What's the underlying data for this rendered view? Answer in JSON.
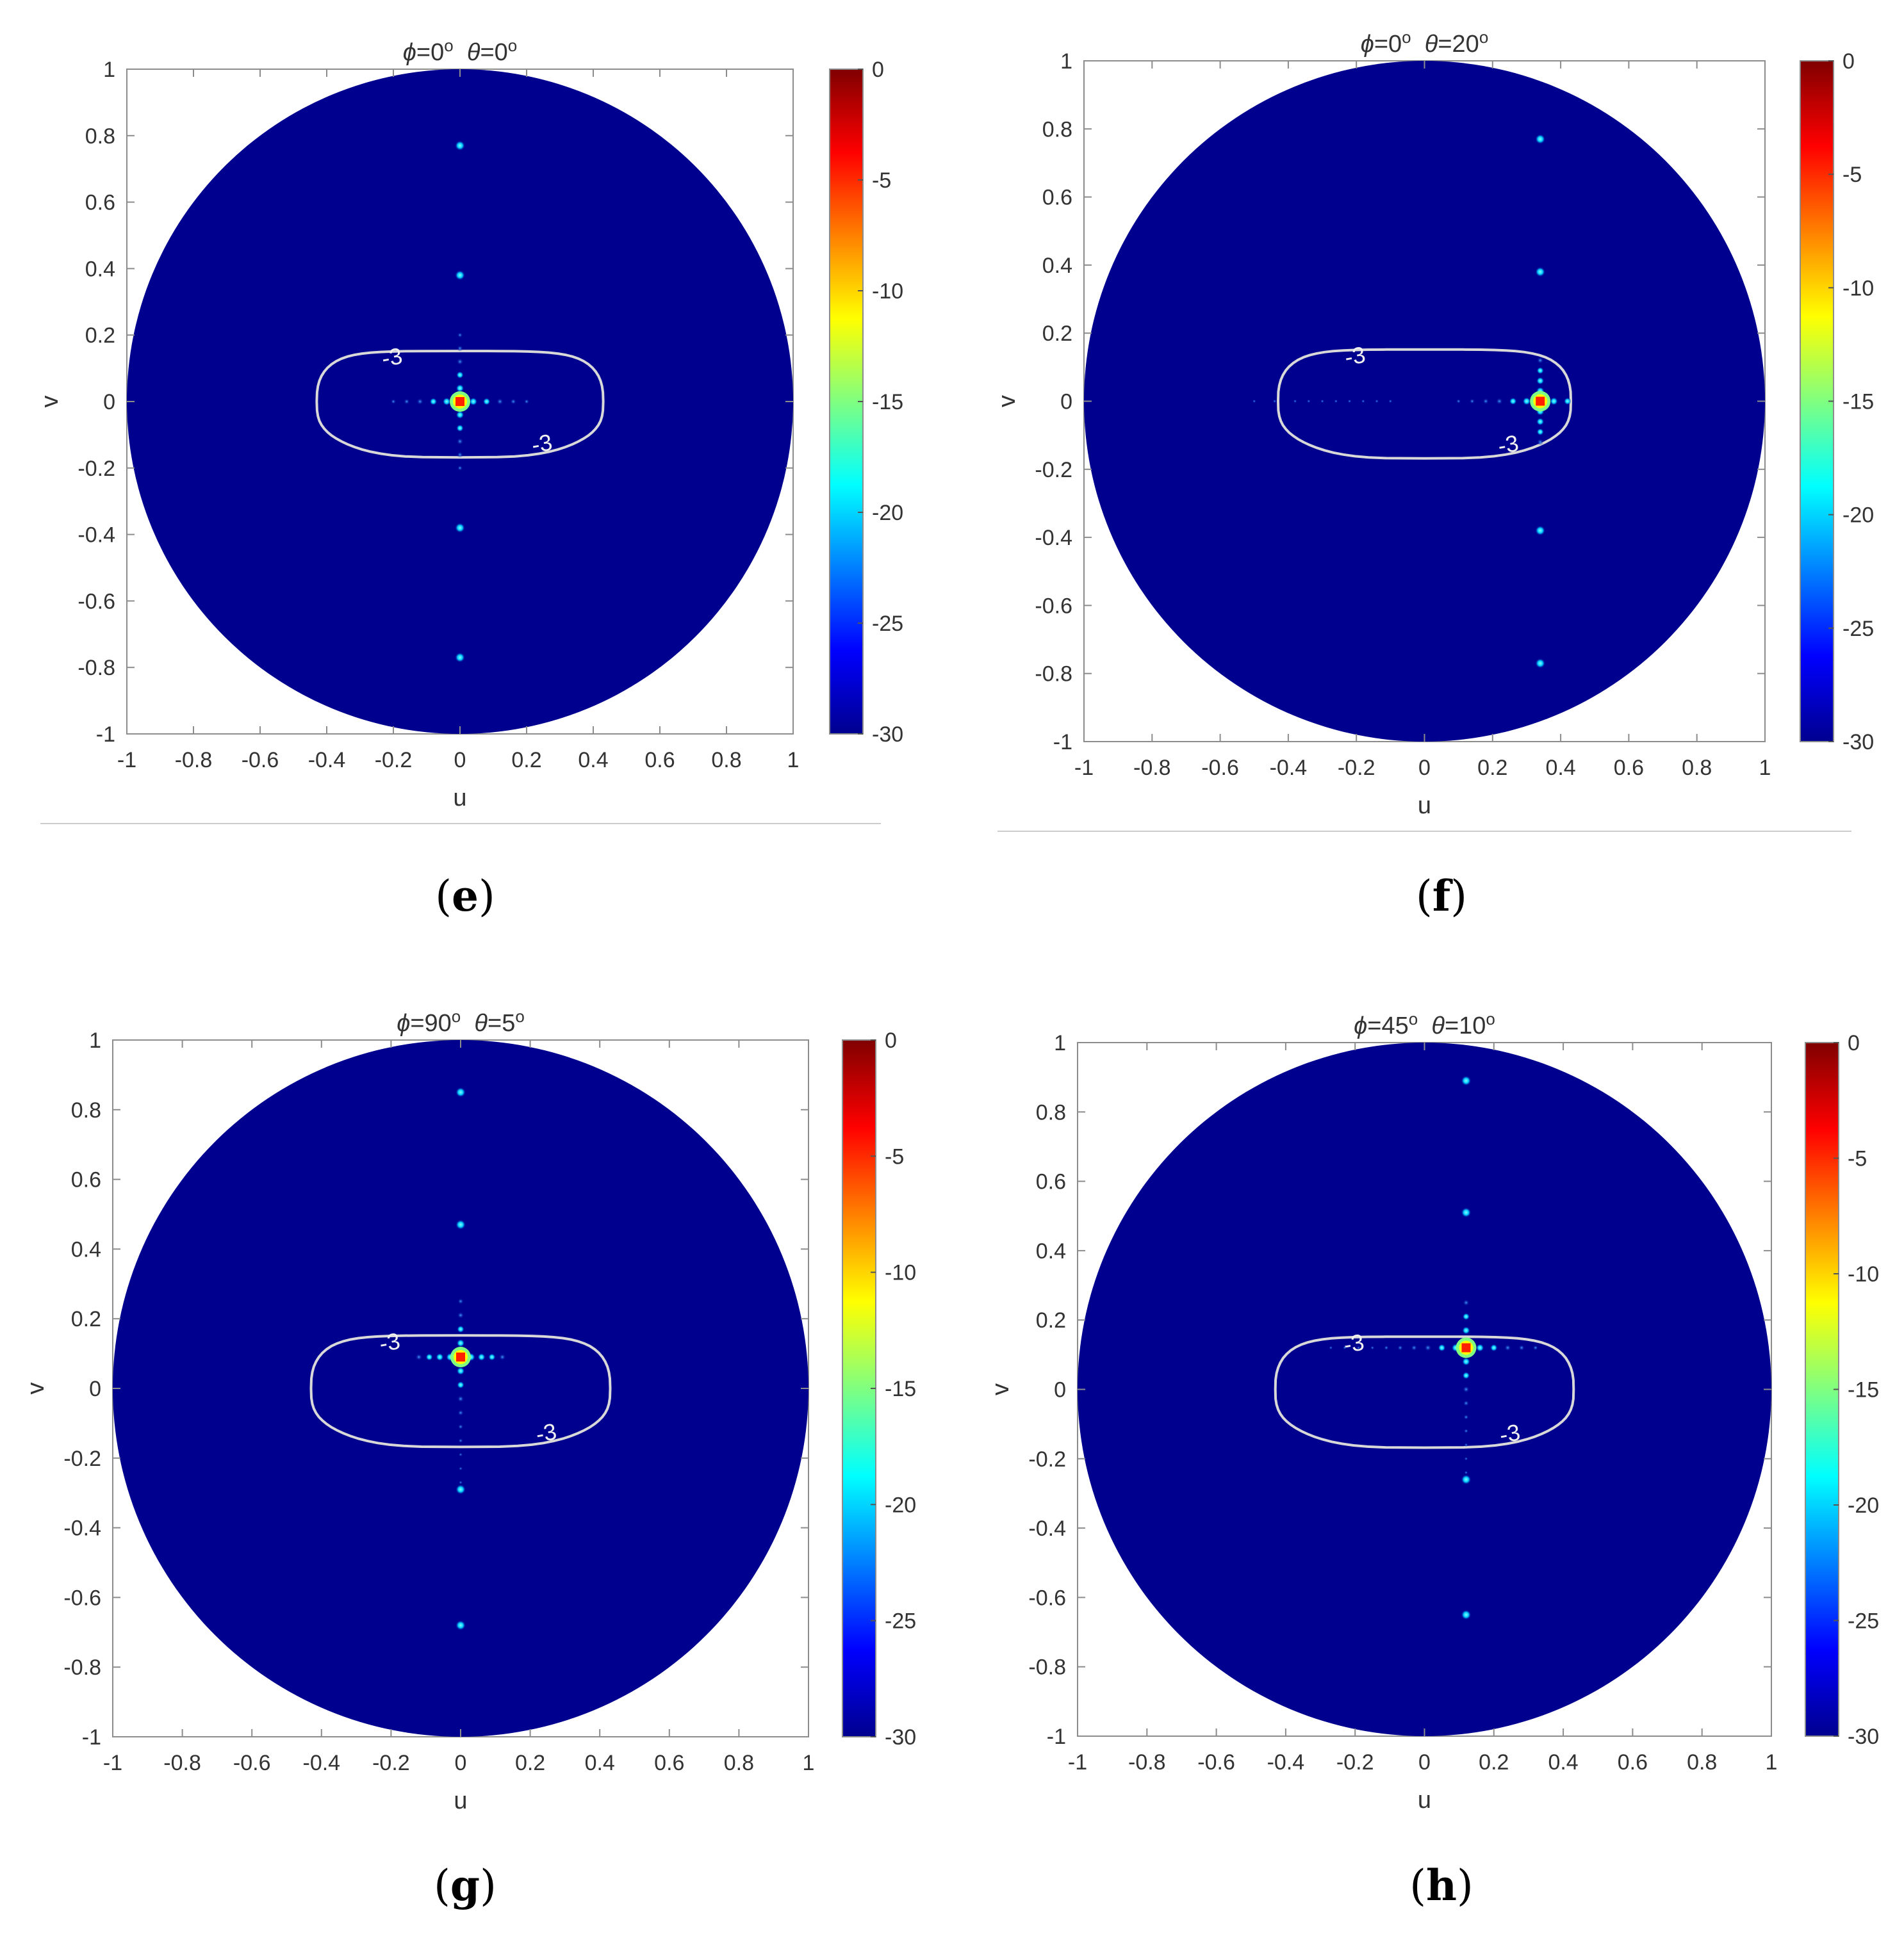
{
  "chart_data": [
    {
      "type": "heatmap",
      "panel_label": "e",
      "title": {
        "phi_symbol": "ϕ",
        "phi_value": "=0",
        "theta_symbol": "θ",
        "theta_value": "=0",
        "degree": "o"
      },
      "xlabel": "u",
      "ylabel": "v",
      "xlim": [
        -1,
        1
      ],
      "ylim": [
        -1,
        1
      ],
      "x_ticks": [
        "-1",
        "-0.8",
        "-0.6",
        "-0.4",
        "-0.2",
        "0",
        "0.2",
        "0.4",
        "0.6",
        "0.8",
        "1"
      ],
      "y_ticks": [
        "-1",
        "-0.8",
        "-0.6",
        "-0.4",
        "-0.2",
        "0",
        "0.2",
        "0.4",
        "0.6",
        "0.8",
        "1"
      ],
      "colorbar": {
        "range": [
          -30,
          0
        ],
        "ticks": [
          "0",
          "-5",
          "-10",
          "-15",
          "-20",
          "-25",
          "-30"
        ]
      },
      "contour": {
        "level": -3,
        "labels": [
          "-3",
          "-3"
        ],
        "u_extent": [
          -0.43,
          0.43
        ],
        "v_extent": [
          -0.16,
          0.16
        ]
      },
      "main_beam": {
        "u": 0.0,
        "v": 0.0
      },
      "sidelobes_u": [
        -0.2,
        -0.16,
        -0.12,
        -0.08,
        -0.04,
        0.04,
        0.08,
        0.12,
        0.16,
        0.2
      ],
      "sidelobes_v": [
        -0.2,
        -0.16,
        -0.12,
        -0.08,
        -0.04,
        0.04,
        0.08,
        0.12,
        0.16,
        0.2
      ],
      "grating_lobes": [
        {
          "u": 0,
          "v": 0.77
        },
        {
          "u": 0,
          "v": 0.38
        },
        {
          "u": 0,
          "v": -0.38
        },
        {
          "u": 0,
          "v": -0.77
        }
      ]
    },
    {
      "type": "heatmap",
      "panel_label": "f",
      "title": {
        "phi_symbol": "ϕ",
        "phi_value": "=0",
        "theta_symbol": "θ",
        "theta_value": "=20",
        "degree": "o"
      },
      "xlabel": "u",
      "ylabel": "v",
      "xlim": [
        -1,
        1
      ],
      "ylim": [
        -1,
        1
      ],
      "x_ticks": [
        "-1",
        "-0.8",
        "-0.6",
        "-0.4",
        "-0.2",
        "0",
        "0.2",
        "0.4",
        "0.6",
        "0.8",
        "1"
      ],
      "y_ticks": [
        "-1",
        "-0.8",
        "-0.6",
        "-0.4",
        "-0.2",
        "0",
        "0.2",
        "0.4",
        "0.6",
        "0.8",
        "1"
      ],
      "colorbar": {
        "range": [
          -30,
          0
        ],
        "ticks": [
          "0",
          "-5",
          "-10",
          "-15",
          "-20",
          "-25",
          "-30"
        ]
      },
      "contour": {
        "level": -3,
        "labels": [
          "-3",
          "-3"
        ],
        "u_extent": [
          -0.43,
          0.43
        ],
        "v_extent": [
          -0.16,
          0.16
        ]
      },
      "main_beam": {
        "u": 0.34,
        "v": 0.0
      },
      "sidelobes_u": [
        -0.5,
        -0.44,
        -0.38,
        -0.34,
        -0.3,
        -0.26,
        -0.22,
        -0.18,
        -0.14,
        -0.1,
        0.1,
        0.14,
        0.18,
        0.22,
        0.26,
        0.3,
        0.38,
        0.42
      ],
      "sidelobes_v": [
        -0.12,
        -0.09,
        -0.06,
        -0.03,
        0.03,
        0.06,
        0.09,
        0.12
      ],
      "grating_lobes": [
        {
          "u": 0.34,
          "v": 0.77
        },
        {
          "u": 0.34,
          "v": 0.38
        },
        {
          "u": 0.34,
          "v": -0.38
        },
        {
          "u": 0.34,
          "v": -0.77
        }
      ]
    },
    {
      "type": "heatmap",
      "panel_label": "g",
      "title": {
        "phi_symbol": "ϕ",
        "phi_value": "=90",
        "theta_symbol": "θ",
        "theta_value": "=5",
        "degree": "o"
      },
      "xlabel": "u",
      "ylabel": "v",
      "xlim": [
        -1,
        1
      ],
      "ylim": [
        -1,
        1
      ],
      "x_ticks": [
        "-1",
        "-0.8",
        "-0.6",
        "-0.4",
        "-0.2",
        "0",
        "0.2",
        "0.4",
        "0.6",
        "0.8",
        "1"
      ],
      "y_ticks": [
        "-1",
        "-0.8",
        "-0.6",
        "-0.4",
        "-0.2",
        "0",
        "0.2",
        "0.4",
        "0.6",
        "0.8",
        "1"
      ],
      "colorbar": {
        "range": [
          -30,
          0
        ],
        "ticks": [
          "0",
          "-5",
          "-10",
          "-15",
          "-20",
          "-25",
          "-30"
        ]
      },
      "contour": {
        "level": -3,
        "labels": [
          "-3",
          "-3"
        ],
        "u_extent": [
          -0.43,
          0.43
        ],
        "v_extent": [
          -0.16,
          0.16
        ]
      },
      "main_beam": {
        "u": 0.0,
        "v": 0.09
      },
      "sidelobes_u": [
        -0.12,
        -0.09,
        -0.06,
        -0.03,
        0.03,
        0.06,
        0.09,
        0.12
      ],
      "sidelobes_v": [
        0.25,
        0.21,
        0.17,
        0.13,
        0.05,
        0.01,
        -0.03,
        -0.07,
        -0.11,
        -0.15,
        -0.19,
        -0.23,
        -0.27
      ],
      "grating_lobes": [
        {
          "u": 0,
          "v": 0.85
        },
        {
          "u": 0,
          "v": 0.47
        },
        {
          "u": 0,
          "v": -0.29
        },
        {
          "u": 0,
          "v": -0.68
        }
      ]
    },
    {
      "type": "heatmap",
      "panel_label": "h",
      "title": {
        "phi_symbol": "ϕ",
        "phi_value": "=45",
        "theta_symbol": "θ",
        "theta_value": "=10",
        "degree": "o"
      },
      "xlabel": "u",
      "ylabel": "v",
      "xlim": [
        -1,
        1
      ],
      "ylim": [
        -1,
        1
      ],
      "x_ticks": [
        "-1",
        "-0.8",
        "-0.6",
        "-0.4",
        "-0.2",
        "0",
        "0.2",
        "0.4",
        "0.6",
        "0.8",
        "1"
      ],
      "y_ticks": [
        "-1",
        "-0.8",
        "-0.6",
        "-0.4",
        "-0.2",
        "0",
        "0.2",
        "0.4",
        "0.6",
        "0.8",
        "1"
      ],
      "colorbar": {
        "range": [
          -30,
          0
        ],
        "ticks": [
          "0",
          "-5",
          "-10",
          "-15",
          "-20",
          "-25",
          "-30"
        ]
      },
      "contour": {
        "level": -3,
        "labels": [
          "-3",
          "-3"
        ],
        "u_extent": [
          -0.43,
          0.43
        ],
        "v_extent": [
          -0.16,
          0.16
        ]
      },
      "main_beam": {
        "u": 0.12,
        "v": 0.12
      },
      "sidelobes_u": [
        -0.27,
        -0.23,
        -0.19,
        -0.15,
        -0.11,
        -0.07,
        -0.03,
        0.01,
        0.05,
        0.09,
        0.16,
        0.2,
        0.24,
        0.28,
        0.32
      ],
      "sidelobes_v": [
        0.25,
        0.21,
        0.17,
        0.08,
        0.04,
        0.0,
        -0.04,
        -0.08,
        -0.12,
        -0.16,
        -0.2,
        -0.24
      ],
      "grating_lobes": [
        {
          "u": 0.12,
          "v": 0.89
        },
        {
          "u": 0.12,
          "v": 0.51
        },
        {
          "u": 0.12,
          "v": -0.26
        },
        {
          "u": 0.12,
          "v": -0.65
        }
      ]
    }
  ],
  "colors": {
    "background": "#00008f",
    "axes_border": "#8c8c8c",
    "contour": "#d8d8d8",
    "colormap": [
      "#00008f",
      "#0000ff",
      "#0080ff",
      "#00ffff",
      "#80ff80",
      "#ffff00",
      "#ff8000",
      "#ff0000",
      "#800000"
    ]
  }
}
